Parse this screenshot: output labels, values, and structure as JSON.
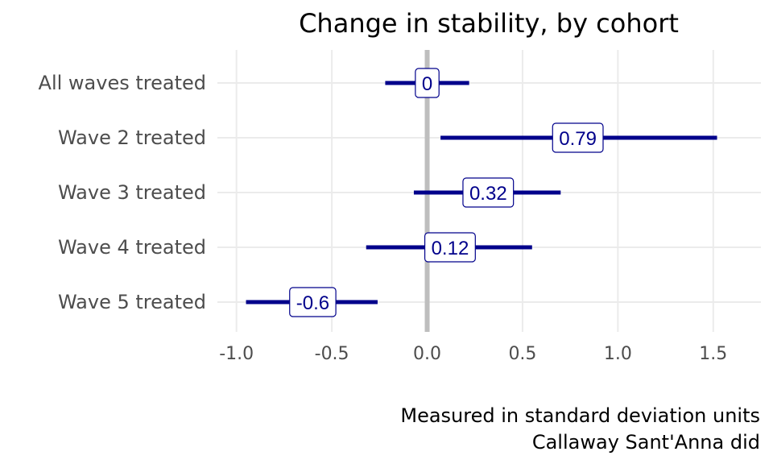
{
  "chart_data": {
    "type": "errorbar",
    "title": "Change in stability, by cohort",
    "caption": [
      "Measured in standard deviation units",
      "Callaway Sant'Anna did"
    ],
    "categories": [
      "All waves treated",
      "Wave 2 treated",
      "Wave 3 treated",
      "Wave 4 treated",
      "Wave 5 treated"
    ],
    "estimates": [
      0,
      0.79,
      0.32,
      0.12,
      -0.6
    ],
    "labels": [
      "0",
      "0.79",
      "0.32",
      "0.12",
      "-0.6"
    ],
    "ci_low": [
      -0.22,
      0.07,
      -0.07,
      -0.32,
      -0.95
    ],
    "ci_high": [
      0.22,
      1.52,
      0.7,
      0.55,
      -0.26
    ],
    "xlim": [
      -1.1,
      1.75
    ],
    "xticks": [
      -1.0,
      -0.5,
      0.0,
      0.5,
      1.0,
      1.5
    ],
    "xtick_labels": [
      "-1.0",
      "-0.5",
      "0.0",
      "0.5",
      "1.0",
      "1.5"
    ],
    "reference_line": 0,
    "grid": true,
    "colors": {
      "series": "#00008B",
      "grid": "#ebebeb",
      "reference": "#bebebe"
    }
  }
}
